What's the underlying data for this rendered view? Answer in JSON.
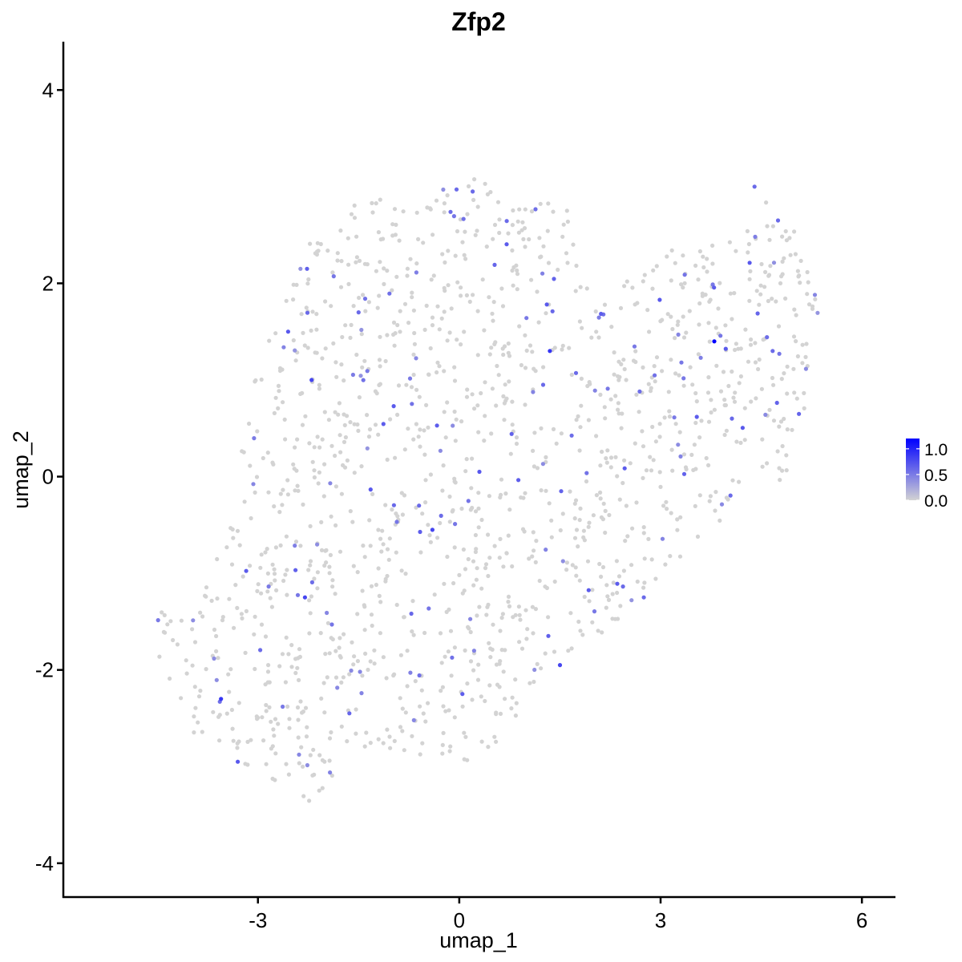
{
  "chart_data": {
    "type": "scatter",
    "title": "Zfp2",
    "xlabel": "umap_1",
    "ylabel": "umap_2",
    "xlim": [
      -5.9,
      6.5
    ],
    "ylim": [
      -4.35,
      4.5
    ],
    "x_ticks": [
      -3,
      0,
      3,
      6
    ],
    "x_tick_labels": [
      "-3",
      "0",
      "3",
      "6"
    ],
    "y_ticks": [
      4,
      2,
      0,
      -2,
      -4
    ],
    "y_tick_labels": [
      "4",
      "2",
      "0",
      "-2",
      "-4"
    ],
    "grid": false,
    "legend": {
      "placement": "right",
      "title": "",
      "color_low": "#d3d3d3",
      "color_high": "#0000ff",
      "range": [
        0,
        1.2
      ],
      "breaks": [
        1.0,
        0.5,
        0.0
      ],
      "break_labels": [
        "1.0",
        "0.5",
        "0.0"
      ]
    },
    "point_color_zero": "#d3d3d3",
    "point_color_max": "#0000ff",
    "cluster_outline": [
      [
        -4.6,
        -1.2
      ],
      [
        -4.2,
        -1.5
      ],
      [
        -3.8,
        -1.1
      ],
      [
        -3.4,
        -0.5
      ],
      [
        -3.2,
        0.5
      ],
      [
        -3.0,
        1.2
      ],
      [
        -2.6,
        1.8
      ],
      [
        -2.2,
        2.6
      ],
      [
        -1.6,
        2.8
      ],
      [
        -0.8,
        3.0
      ],
      [
        0.2,
        3.1
      ],
      [
        1.0,
        2.9
      ],
      [
        1.6,
        2.8
      ],
      [
        2.0,
        1.8
      ],
      [
        2.6,
        2.1
      ],
      [
        3.2,
        2.4
      ],
      [
        3.6,
        2.5
      ],
      [
        4.2,
        2.4
      ],
      [
        4.6,
        3.0
      ],
      [
        5.0,
        2.6
      ],
      [
        5.3,
        2.2
      ],
      [
        5.4,
        1.6
      ],
      [
        5.2,
        0.8
      ],
      [
        5.0,
        0.2
      ],
      [
        4.8,
        -0.1
      ],
      [
        4.4,
        -0.2
      ],
      [
        4.0,
        -0.4
      ],
      [
        3.6,
        -0.6
      ],
      [
        3.2,
        -1.0
      ],
      [
        2.8,
        -1.2
      ],
      [
        2.2,
        -1.6
      ],
      [
        1.8,
        -1.8
      ],
      [
        1.2,
        -2.0
      ],
      [
        0.8,
        -2.6
      ],
      [
        0.4,
        -2.9
      ],
      [
        0.0,
        -3.0
      ],
      [
        -0.6,
        -2.9
      ],
      [
        -1.2,
        -2.8
      ],
      [
        -1.6,
        -2.9
      ],
      [
        -2.0,
        -3.2
      ],
      [
        -2.4,
        -3.5
      ],
      [
        -2.8,
        -3.2
      ],
      [
        -3.2,
        -3.0
      ],
      [
        -3.8,
        -2.8
      ],
      [
        -4.2,
        -2.4
      ],
      [
        -4.4,
        -2.0
      ],
      [
        -4.6,
        -1.6
      ]
    ],
    "highlighted_points": [
      {
        "x": 3.8,
        "y": 1.4,
        "value": 1.2
      },
      {
        "x": 1.35,
        "y": 1.3,
        "value": 0.9
      },
      {
        "x": -3.55,
        "y": -2.3,
        "value": 0.9
      },
      {
        "x": -2.2,
        "y": 1.0,
        "value": 0.8
      },
      {
        "x": -0.4,
        "y": -0.55,
        "value": 0.8
      },
      {
        "x": 1.5,
        "y": -1.95,
        "value": 0.8
      },
      {
        "x": -3.3,
        "y": -2.95,
        "value": 0.7
      },
      {
        "x": -2.3,
        "y": -1.25,
        "value": 0.8
      },
      {
        "x": 0.3,
        "y": 0.05,
        "value": 0.7
      },
      {
        "x": 0.2,
        "y": 2.95,
        "value": 0.6
      },
      {
        "x": 4.4,
        "y": 3.0,
        "value": 0.6
      },
      {
        "x": 4.75,
        "y": 2.65,
        "value": 0.6
      },
      {
        "x": -1.5,
        "y": 1.7,
        "value": 0.6
      },
      {
        "x": -2.55,
        "y": 1.5,
        "value": 0.7
      },
      {
        "x": 1.25,
        "y": 0.95,
        "value": 0.6
      },
      {
        "x": -0.6,
        "y": -0.3,
        "value": 0.6
      },
      {
        "x": 2.75,
        "y": -1.25,
        "value": 0.6
      }
    ],
    "n_points_drawn": 1500
  }
}
